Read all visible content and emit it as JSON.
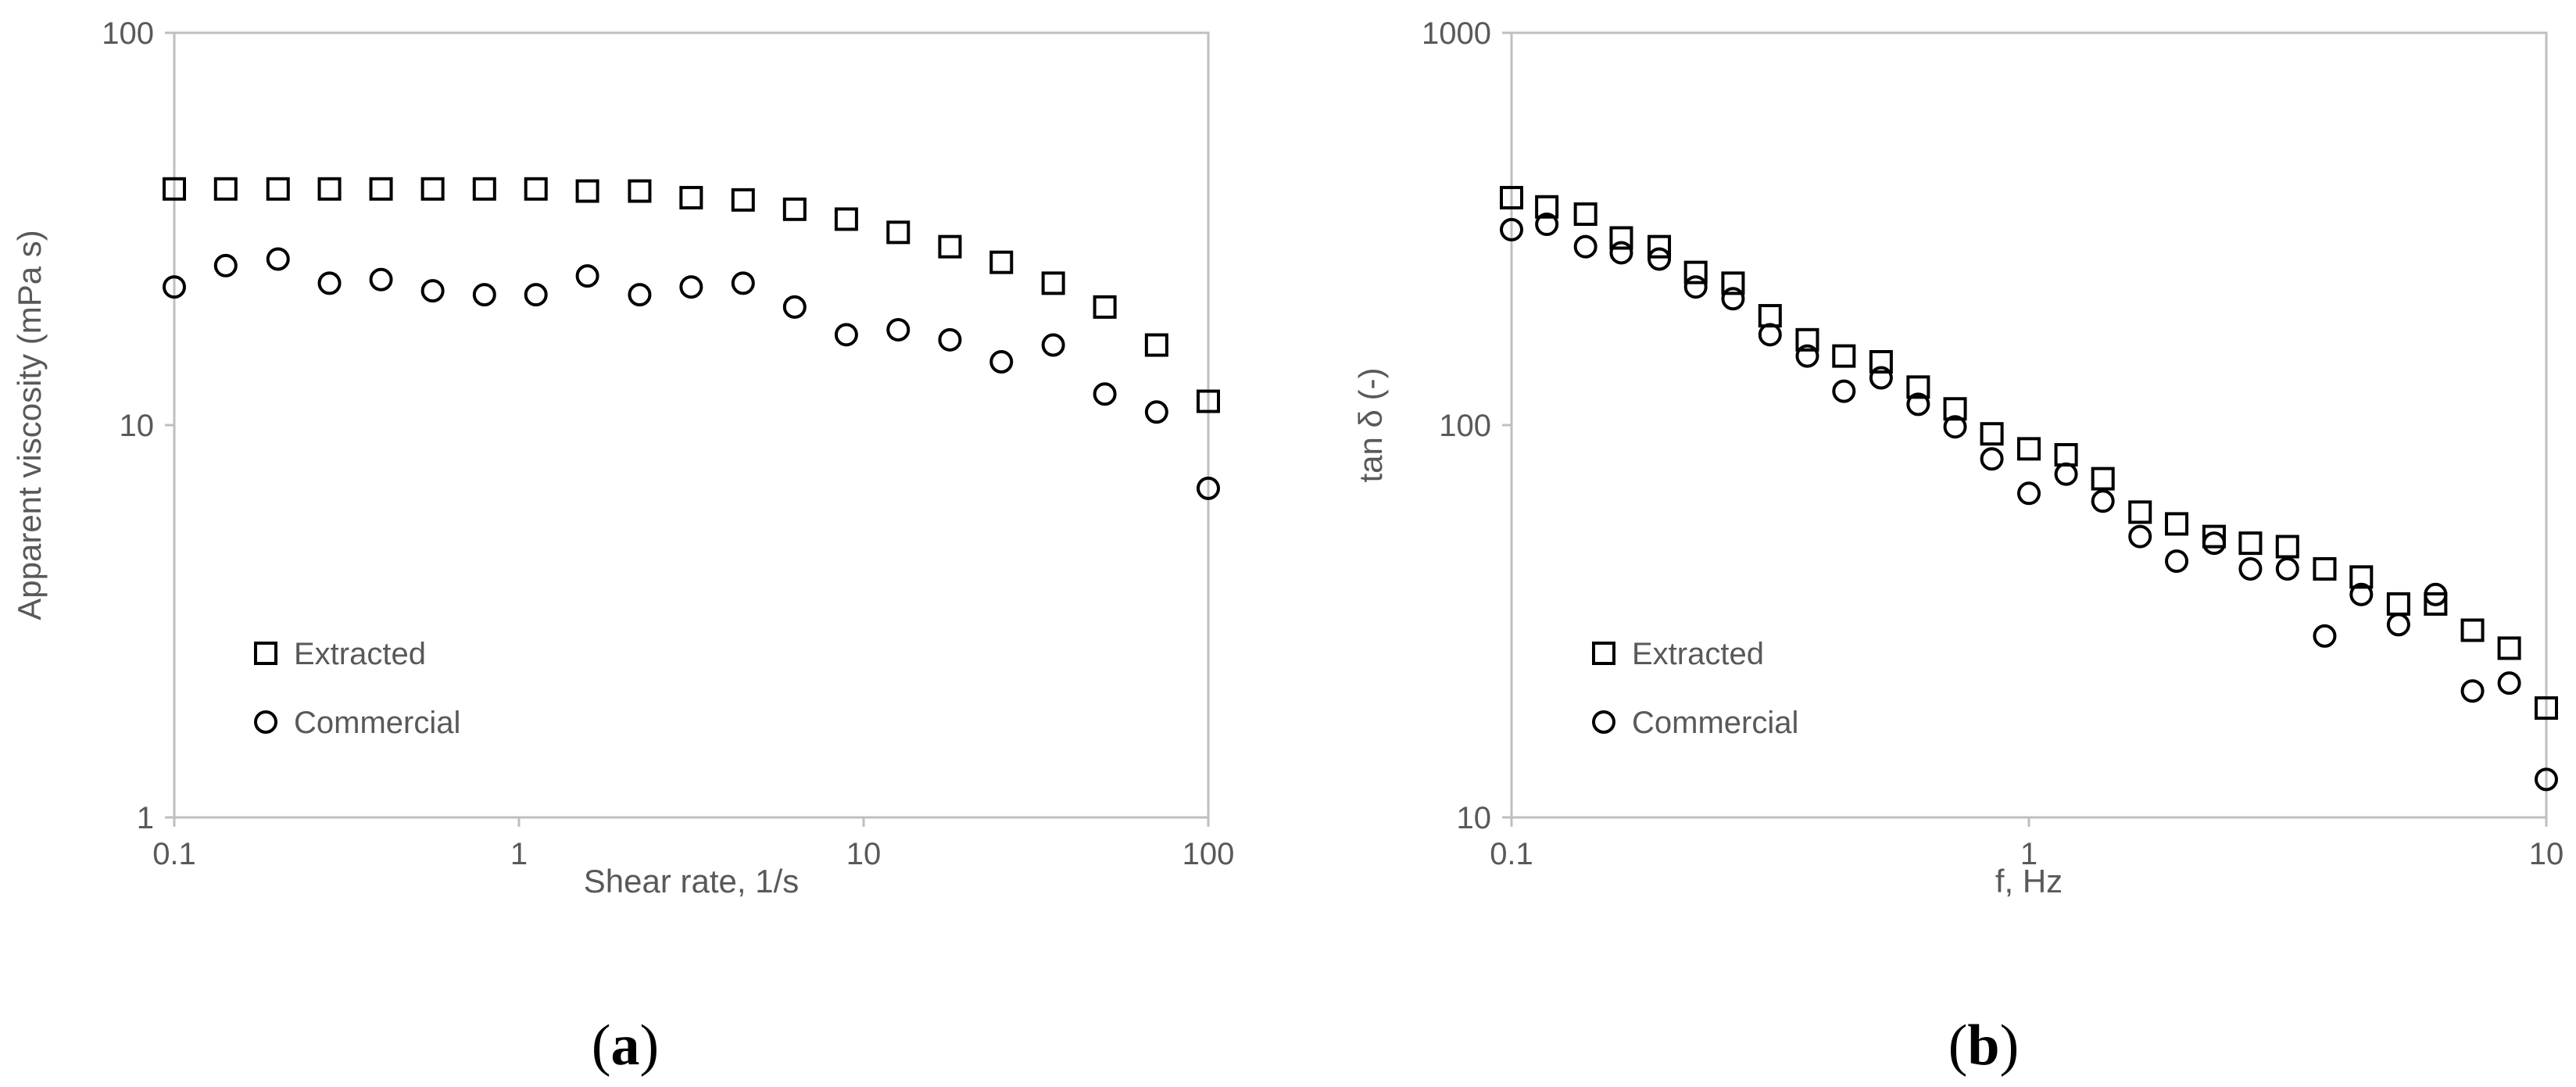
{
  "chart_data": [
    {
      "type": "scatter",
      "panel_label": "(a)",
      "panel_letter": "a",
      "xlabel": "Shear rate, 1/s",
      "ylabel": "Apparent viscosity (mPa s)",
      "xscale": "log",
      "yscale": "log",
      "xlim": [
        0.1,
        100
      ],
      "ylim": [
        1,
        100
      ],
      "xticks": [
        "0.1",
        "1",
        "10",
        "100"
      ],
      "yticks": [
        "1",
        "10",
        "100"
      ],
      "grid": false,
      "legend_position": "bottom-left",
      "series": [
        {
          "name": "Extracted",
          "marker": "square",
          "x": [
            0.1,
            0.141,
            0.2,
            0.282,
            0.398,
            0.562,
            0.794,
            1.12,
            1.58,
            2.24,
            3.16,
            4.47,
            6.31,
            8.91,
            12.6,
            17.8,
            25.1,
            35.5,
            50.1,
            70.8,
            100
          ],
          "y": [
            40,
            40,
            40,
            40,
            40,
            40,
            40,
            40,
            39.5,
            39.5,
            38,
            37.5,
            35.5,
            33.5,
            31,
            28.5,
            26,
            23,
            20,
            16,
            11.5
          ]
        },
        {
          "name": "Commercial",
          "marker": "circle",
          "x": [
            0.1,
            0.141,
            0.2,
            0.282,
            0.398,
            0.562,
            0.794,
            1.12,
            1.58,
            2.24,
            3.16,
            4.47,
            6.31,
            8.91,
            12.6,
            17.8,
            25.1,
            35.5,
            50.1,
            70.8,
            100
          ],
          "y": [
            22.5,
            25.5,
            26.5,
            23,
            23.5,
            22,
            21.5,
            21.5,
            24,
            21.5,
            22.5,
            23,
            20,
            17,
            17.5,
            16.5,
            14.5,
            16,
            12,
            10.8,
            6.9
          ]
        }
      ]
    },
    {
      "type": "scatter",
      "panel_label": "(b)",
      "panel_letter": "b",
      "xlabel": "f, Hz",
      "ylabel": "tan δ (-)",
      "xscale": "log",
      "yscale": "log",
      "xlim": [
        0.1,
        10
      ],
      "ylim": [
        10,
        1000
      ],
      "xticks": [
        "0.1",
        "1",
        "10"
      ],
      "yticks": [
        "10",
        "100",
        "1000"
      ],
      "grid": false,
      "legend_position": "bottom-left",
      "series": [
        {
          "name": "Extracted",
          "marker": "square",
          "x": [
            0.1,
            0.117,
            0.139,
            0.163,
            0.193,
            0.227,
            0.268,
            0.316,
            0.373,
            0.439,
            0.518,
            0.611,
            0.72,
            0.848,
            1.0,
            1.18,
            1.39,
            1.64,
            1.93,
            2.28,
            2.68,
            3.16,
            3.73,
            4.39,
            5.18,
            6.11,
            7.2,
            8.48,
            10
          ],
          "y": [
            380,
            360,
            345,
            300,
            285,
            245,
            230,
            190,
            165,
            150,
            145,
            125,
            110,
            95,
            87,
            84,
            73,
            60,
            56,
            52,
            50,
            49,
            43,
            41,
            35,
            35,
            30,
            27,
            19
          ]
        },
        {
          "name": "Commercial",
          "marker": "circle",
          "x": [
            0.1,
            0.117,
            0.139,
            0.163,
            0.193,
            0.227,
            0.268,
            0.316,
            0.373,
            0.439,
            0.518,
            0.611,
            0.72,
            0.848,
            1.0,
            1.18,
            1.39,
            1.64,
            1.93,
            2.28,
            2.68,
            3.16,
            3.73,
            4.39,
            5.18,
            6.11,
            7.2,
            8.48,
            10
          ],
          "y": [
            315,
            325,
            285,
            275,
            265,
            225,
            210,
            170,
            150,
            122,
            132,
            113,
            99,
            82,
            67,
            75,
            64,
            52,
            45,
            50,
            43,
            43,
            29,
            37,
            31,
            37,
            21,
            22,
            12.5
          ]
        }
      ]
    }
  ]
}
